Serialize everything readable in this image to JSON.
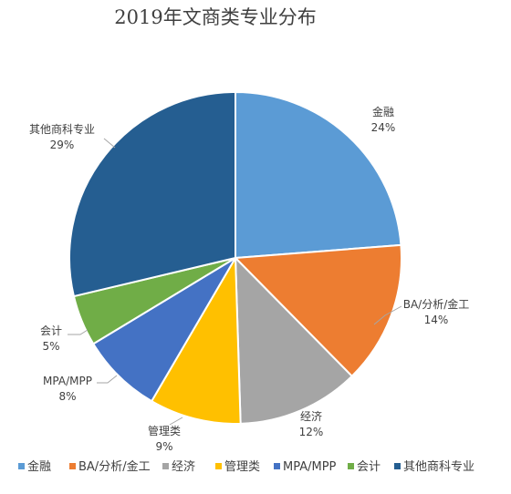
{
  "chart_data": {
    "type": "pie",
    "title": "2019年文商类专业分布",
    "start_angle_deg": 0,
    "direction": "clockwise",
    "legend_position": "bottom",
    "slices": [
      {
        "label": "金融",
        "value": 24,
        "value_label": "24%",
        "color": "#5B9BD5"
      },
      {
        "label": "BA/分析/金工",
        "value": 14,
        "value_label": "14%",
        "color": "#ED7D31"
      },
      {
        "label": "经济",
        "value": 12,
        "value_label": "12%",
        "color": "#A5A5A5"
      },
      {
        "label": "管理类",
        "value": 9,
        "value_label": "9%",
        "color": "#FFC000"
      },
      {
        "label": "MPA/MPP",
        "value": 8,
        "value_label": "8%",
        "color": "#4472C4"
      },
      {
        "label": "会计",
        "value": 5,
        "value_label": "5%",
        "color": "#70AD47"
      },
      {
        "label": "其他商科专业",
        "value": 29,
        "value_label": "29%",
        "color": "#255E91"
      }
    ]
  }
}
